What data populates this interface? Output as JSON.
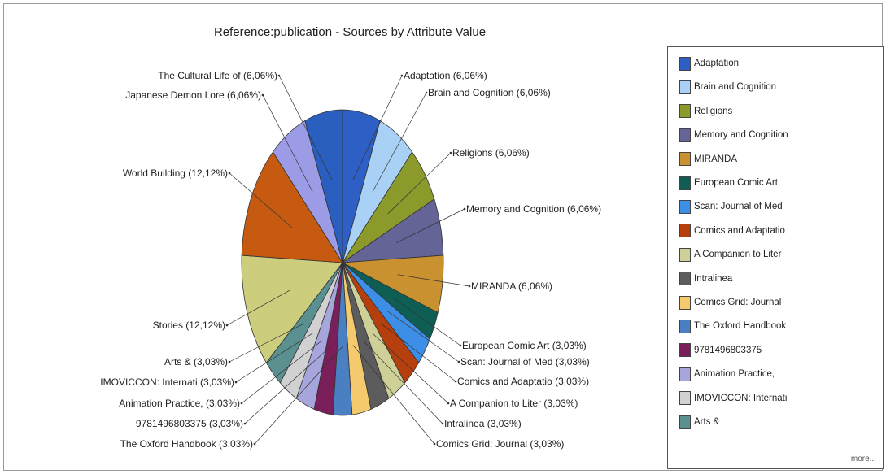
{
  "chart_data": {
    "type": "pie",
    "title": "Reference:publication - Sources by Attribute Value",
    "slices": [
      {
        "name": "Adaptation",
        "label": "Adaptation (6,06%)",
        "value": 6.06,
        "color": "#2e5fc4"
      },
      {
        "name": "Brain and Cognition",
        "label": "Brain and Cognition (6,06%)",
        "value": 6.06,
        "color": "#a9d1f5"
      },
      {
        "name": "Religions",
        "label": "Religions (6,06%)",
        "value": 6.06,
        "color": "#8b9a2a"
      },
      {
        "name": "Memory and Cognition",
        "label": "Memory and Cognition (6,06%)",
        "value": 6.06,
        "color": "#646497"
      },
      {
        "name": "MIRANDA",
        "label": "MIRANDA (6,06%)",
        "value": 6.06,
        "color": "#c9912f"
      },
      {
        "name": "European Comic Art",
        "label": "European Comic Art (3,03%)",
        "value": 3.03,
        "color": "#0e5e55"
      },
      {
        "name": "Scan: Journal of Med",
        "label": "Scan: Journal of Med (3,03%)",
        "value": 3.03,
        "color": "#3d8ee6"
      },
      {
        "name": "Comics and Adaptatio",
        "label": "Comics and Adaptatio (3,03%)",
        "value": 3.03,
        "color": "#b5400e"
      },
      {
        "name": "A Companion to Liter",
        "label": "A Companion to Liter (3,03%)",
        "value": 3.03,
        "color": "#cfcf98"
      },
      {
        "name": "Intralinea",
        "label": "Intralinea (3,03%)",
        "value": 3.03,
        "color": "#5c5c5c"
      },
      {
        "name": "Comics Grid: Journal",
        "label": "Comics Grid: Journal (3,03%)",
        "value": 3.03,
        "color": "#f5ca6e"
      },
      {
        "name": "The Oxford Handbook",
        "label": "The Oxford Handbook  (3,03%)",
        "value": 3.03,
        "color": "#4a80c2"
      },
      {
        "name": "9781496803375",
        "label": "9781496803375 (3,03%)",
        "value": 3.03,
        "color": "#7a1f5a"
      },
      {
        "name": "Animation Practice,",
        "label": "Animation Practice,  (3,03%)",
        "value": 3.03,
        "color": "#a6a6dd"
      },
      {
        "name": "IMOVICCON: Internati",
        "label": "IMOVICCON: Internati (3,03%)",
        "value": 3.03,
        "color": "#d1d1d1"
      },
      {
        "name": "Arts &",
        "label": "Arts & (3,03%)",
        "value": 3.03,
        "color": "#5a9090"
      },
      {
        "name": "Stories",
        "label": "Stories (12,12%)",
        "value": 12.12,
        "color": "#cdcd7e"
      },
      {
        "name": "World Building",
        "label": "World Building (12,12%)",
        "value": 12.12,
        "color": "#c65a10"
      },
      {
        "name": "Japanese Demon Lore",
        "label": "Japanese Demon Lore (6,06%)",
        "value": 6.06,
        "color": "#9c9ce6"
      },
      {
        "name": "The Cultural Life of",
        "label": "The Cultural Life of (6,06%)",
        "value": 6.06,
        "color": "#2a5fbf"
      }
    ],
    "legend_position": "right",
    "legend_entries": [
      "Adaptation",
      "Brain and Cognition",
      "Religions",
      "Memory and Cognition",
      "MIRANDA",
      "European Comic Art",
      "Scan: Journal of Med",
      "Comics and Adaptatio",
      "A Companion to Liter",
      "Intralinea",
      "Comics Grid: Journal",
      "The Oxford Handbook",
      "9781496803375",
      "Animation Practice,",
      "IMOVICCON: Internati",
      "Arts &"
    ],
    "legend_more": "more..."
  }
}
